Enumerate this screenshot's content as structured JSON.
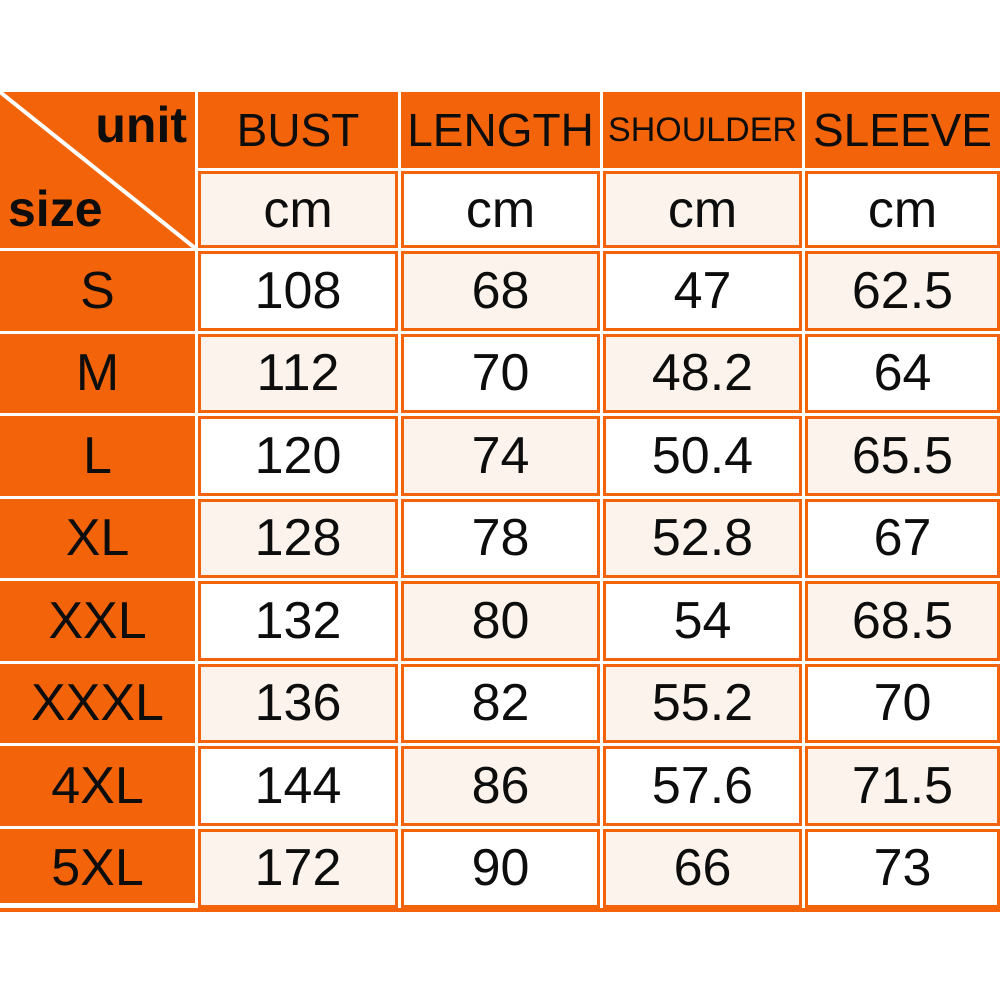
{
  "table": {
    "corner": {
      "top_right": "unit",
      "bottom_left": "size"
    },
    "columns": [
      "BUST",
      "LENGTH",
      "SHOULDER",
      "SLEEVE"
    ],
    "unit_row": [
      "cm",
      "cm",
      "cm",
      "cm"
    ],
    "rows": [
      {
        "size": "S",
        "values": [
          "108",
          "68",
          "47",
          "62.5"
        ]
      },
      {
        "size": "M",
        "values": [
          "112",
          "70",
          "48.2",
          "64"
        ]
      },
      {
        "size": "L",
        "values": [
          "120",
          "74",
          "50.4",
          "65.5"
        ]
      },
      {
        "size": "XL",
        "values": [
          "128",
          "78",
          "52.8",
          "67"
        ]
      },
      {
        "size": "XXL",
        "values": [
          "132",
          "80",
          "54",
          "68.5"
        ]
      },
      {
        "size": "XXXL",
        "values": [
          "136",
          "82",
          "55.2",
          "70"
        ]
      },
      {
        "size": "4XL",
        "values": [
          "144",
          "86",
          "57.6",
          "71.5"
        ]
      },
      {
        "size": "5XL",
        "values": [
          "172",
          "90",
          "66",
          "73"
        ]
      }
    ],
    "colors": {
      "orange": "#F3640A",
      "cell_shade": "#FBF3EC",
      "cell_white": "#FFFFFF",
      "text": "#0D0D0D",
      "diagonal_line": "#FFFFFF"
    }
  }
}
